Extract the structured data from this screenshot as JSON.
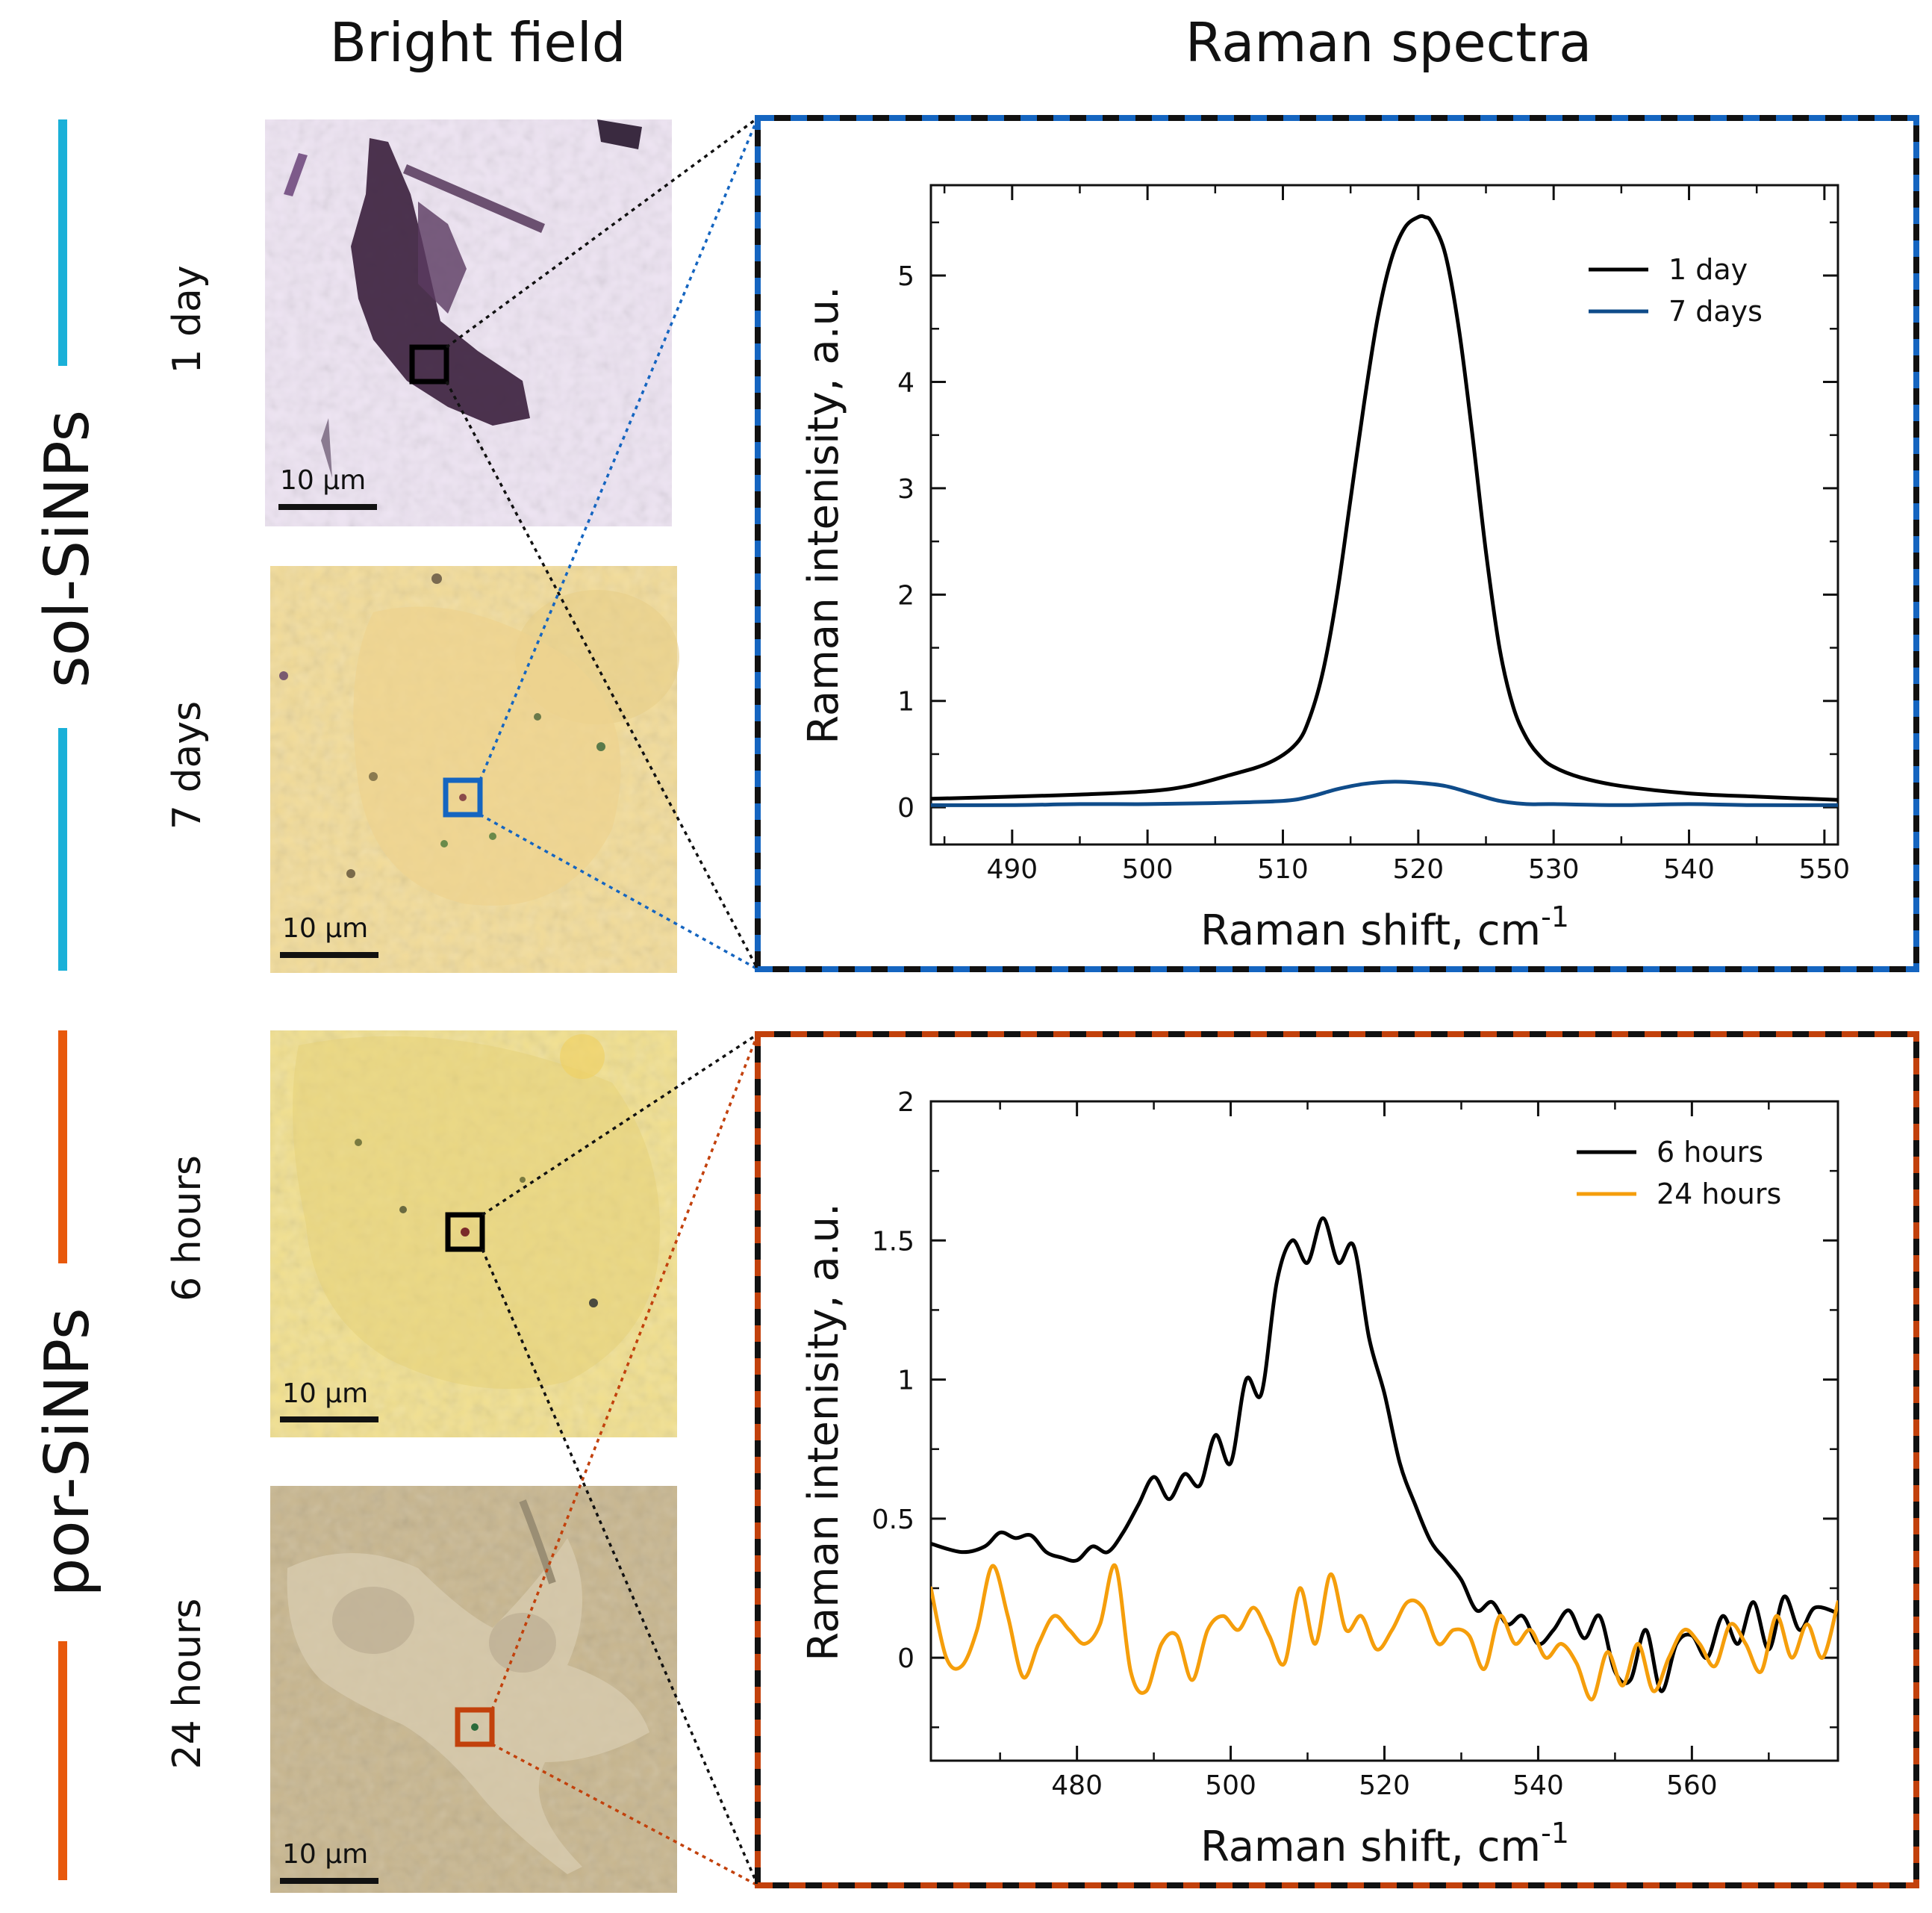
{
  "headers": {
    "bright_field": "Bright field",
    "raman_spectra": "Raman spectra"
  },
  "groups": [
    {
      "label": "sol-SiNPs",
      "color": "#1ab0d8"
    },
    {
      "label": "por-SiNPs",
      "color": "#e8590c"
    }
  ],
  "panels": [
    {
      "time_label": "1 day",
      "scale_bar": "10 µm",
      "roi_color": "#000000"
    },
    {
      "time_label": "7 days",
      "scale_bar": "10 µm",
      "roi_color": "#1565c0"
    },
    {
      "time_label": "6 hours",
      "scale_bar": "10 µm",
      "roi_color": "#000000"
    },
    {
      "time_label": "24 hours",
      "scale_bar": "10 µm",
      "roi_color": "#c2410c"
    }
  ],
  "chart_data": [
    {
      "type": "line",
      "frame_color": "#1565c0",
      "xlabel": "Raman shift, cm",
      "xlabel_sup": "-1",
      "ylabel": "Raman intenisity, a.u.",
      "xlim": [
        484,
        551
      ],
      "ylim": [
        -0.35,
        5.85
      ],
      "xticks": [
        490,
        500,
        510,
        520,
        530,
        540,
        550
      ],
      "yticks": [
        0,
        1,
        2,
        3,
        4,
        5
      ],
      "ytick_labels": [
        "0",
        "1",
        "2",
        "3",
        "4",
        "5"
      ],
      "legend_position": "top-right",
      "series": [
        {
          "name": "1 day",
          "color": "#000000",
          "x": [
            484,
            490,
            495,
            500,
            503,
            506,
            509,
            511,
            512,
            513,
            514,
            515,
            516,
            517,
            518,
            519,
            520,
            520.5,
            521,
            522,
            523,
            524,
            525,
            526,
            527,
            528,
            529,
            530,
            532,
            535,
            540,
            545,
            551
          ],
          "y": [
            0.08,
            0.1,
            0.12,
            0.15,
            0.2,
            0.3,
            0.42,
            0.6,
            0.85,
            1.3,
            2.0,
            2.9,
            3.8,
            4.6,
            5.15,
            5.45,
            5.55,
            5.55,
            5.5,
            5.2,
            4.5,
            3.5,
            2.4,
            1.5,
            0.95,
            0.65,
            0.48,
            0.38,
            0.28,
            0.2,
            0.13,
            0.1,
            0.07
          ]
        },
        {
          "name": "7 days",
          "color": "#0f4c8a",
          "x": [
            484,
            490,
            495,
            500,
            505,
            510,
            512,
            514,
            516,
            518,
            520,
            522,
            524,
            526,
            528,
            530,
            535,
            540,
            545,
            551
          ],
          "y": [
            0.02,
            0.02,
            0.03,
            0.03,
            0.04,
            0.06,
            0.1,
            0.17,
            0.22,
            0.24,
            0.23,
            0.2,
            0.13,
            0.06,
            0.03,
            0.03,
            0.02,
            0.03,
            0.02,
            0.02
          ]
        }
      ]
    },
    {
      "type": "line",
      "frame_color": "#c2410c",
      "xlabel": "Raman shift, cm",
      "xlabel_sup": "-1",
      "ylabel": "Raman intenisity, a.u.",
      "xlim": [
        461,
        579
      ],
      "ylim": [
        -0.37,
        2.0
      ],
      "xticks": [
        480,
        500,
        520,
        540,
        560
      ],
      "yticks": [
        0,
        0.5,
        1,
        1.5,
        2
      ],
      "ytick_labels": [
        "0",
        "0.5",
        "1",
        "1.5",
        "2"
      ],
      "legend_position": "top-right",
      "series": [
        {
          "name": "6 hours",
          "color": "#000000",
          "x": [
            461,
            465,
            468,
            470,
            472,
            474,
            476,
            478,
            480,
            482,
            484,
            486,
            488,
            490,
            492,
            494,
            496,
            498,
            500,
            502,
            504,
            506,
            508,
            510,
            512,
            514,
            516,
            518,
            520,
            522,
            524,
            526,
            528,
            530,
            532,
            534,
            536,
            538,
            540,
            542,
            544,
            546,
            548,
            550,
            552,
            554,
            556,
            558,
            560,
            562,
            564,
            566,
            568,
            570,
            572,
            574,
            576,
            579
          ],
          "y": [
            0.41,
            0.38,
            0.4,
            0.45,
            0.43,
            0.44,
            0.38,
            0.36,
            0.35,
            0.4,
            0.38,
            0.45,
            0.55,
            0.65,
            0.57,
            0.66,
            0.62,
            0.8,
            0.7,
            1.0,
            0.95,
            1.35,
            1.5,
            1.42,
            1.58,
            1.42,
            1.48,
            1.15,
            0.95,
            0.7,
            0.55,
            0.42,
            0.35,
            0.28,
            0.17,
            0.2,
            0.12,
            0.15,
            0.05,
            0.1,
            0.17,
            0.07,
            0.15,
            -0.05,
            -0.08,
            0.1,
            -0.12,
            0.05,
            0.08,
            0.0,
            0.15,
            0.05,
            0.2,
            0.03,
            0.22,
            0.1,
            0.18,
            0.16
          ]
        },
        {
          "name": "24 hours",
          "color": "#f59e0b",
          "x": [
            461,
            463,
            465,
            467,
            469,
            471,
            473,
            475,
            477,
            479,
            481,
            483,
            485,
            487,
            489,
            491,
            493,
            495,
            497,
            499,
            501,
            503,
            505,
            507,
            509,
            511,
            513,
            515,
            517,
            519,
            521,
            523,
            525,
            527,
            529,
            531,
            533,
            535,
            537,
            539,
            541,
            543,
            545,
            547,
            549,
            551,
            553,
            555,
            557,
            559,
            561,
            563,
            565,
            567,
            569,
            571,
            573,
            575,
            577,
            579
          ],
          "y": [
            0.25,
            0.0,
            -0.03,
            0.1,
            0.33,
            0.15,
            -0.07,
            0.05,
            0.15,
            0.1,
            0.05,
            0.12,
            0.33,
            -0.05,
            -0.12,
            0.05,
            0.08,
            -0.08,
            0.1,
            0.15,
            0.1,
            0.18,
            0.08,
            -0.02,
            0.25,
            0.05,
            0.3,
            0.1,
            0.15,
            0.03,
            0.1,
            0.2,
            0.18,
            0.05,
            0.1,
            0.08,
            -0.04,
            0.15,
            0.05,
            0.1,
            0.0,
            0.05,
            -0.02,
            -0.15,
            0.02,
            -0.1,
            0.05,
            -0.12,
            0.0,
            0.1,
            0.05,
            -0.03,
            0.12,
            0.05,
            -0.05,
            0.15,
            0.0,
            0.12,
            0.0,
            0.2
          ]
        }
      ]
    }
  ]
}
